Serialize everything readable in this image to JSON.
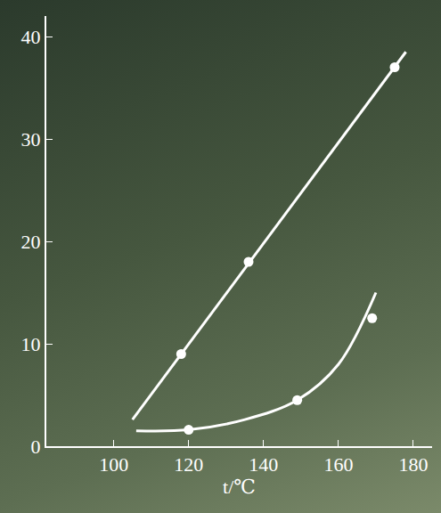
{
  "chart_data": {
    "type": "line",
    "x_label": "t/℃",
    "series": [
      {
        "x": [
          105,
          178
        ],
        "values": [
          2.6,
          38.5
        ],
        "color": "#ffffff",
        "marker": "none",
        "line_style": "solid"
      },
      {
        "x": [
          118,
          136,
          175
        ],
        "values": [
          9,
          18,
          37
        ],
        "color": "#ffffff",
        "marker": "circle",
        "line_style": "none"
      },
      {
        "x": [
          106,
          120,
          135,
          149,
          160,
          170
        ],
        "values": [
          1.5,
          1.6,
          2.6,
          4.5,
          8,
          15
        ],
        "color": "#ffffff",
        "marker": "none",
        "line_style": "spline"
      },
      {
        "x": [
          120,
          149,
          169
        ],
        "values": [
          1.6,
          4.5,
          12.5
        ],
        "color": "#ffffff",
        "marker": "circle",
        "line_style": "none"
      }
    ],
    "xlim": [
      82,
      185
    ],
    "xticks": [
      100,
      120,
      140,
      160,
      180
    ],
    "ylim": [
      0,
      42
    ],
    "yticks": [
      0,
      10,
      20,
      30,
      40
    ],
    "grid": false
  }
}
